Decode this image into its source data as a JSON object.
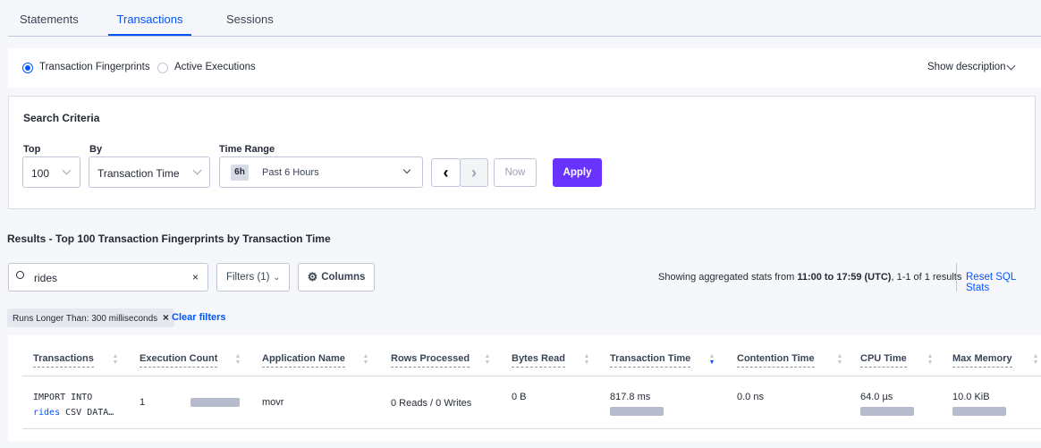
{
  "tabs": [
    {
      "label": "Statements"
    },
    {
      "label": "Transactions",
      "active": true
    },
    {
      "label": "Sessions"
    }
  ],
  "view": {
    "options": [
      {
        "label": "Transaction Fingerprints",
        "selected": true
      },
      {
        "label": "Active Executions",
        "selected": false
      }
    ],
    "show_description": "Show description"
  },
  "search_criteria": {
    "title": "Search Criteria",
    "top_label": "Top",
    "top_value": "100",
    "by_label": "By",
    "by_value": "Transaction Time",
    "time_label": "Time Range",
    "time_badge": "6h",
    "time_value": "Past 6 Hours",
    "now": "Now",
    "apply": "Apply"
  },
  "results": {
    "title": "Results - Top 100 Transaction Fingerprints by Transaction Time",
    "search_value": "rides",
    "filters": "Filters (1)",
    "columns": "Columns",
    "showing_pre": "Showing aggregated stats from ",
    "showing_range": "11:00 to 17:59 (UTC)",
    "showing_post": ", 1-1 of 1 results",
    "reset": "Reset SQL Stats",
    "chip": "Runs Longer Than: 300 milliseconds",
    "clear": "Clear filters"
  },
  "table": {
    "headers": [
      "Transactions",
      "Execution Count",
      "Application Name",
      "Rows Processed",
      "Bytes Read",
      "Transaction Time",
      "Contention Time",
      "CPU Time",
      "Max Memory"
    ],
    "sorted_column": "Transaction Time",
    "sort_direction": "descending",
    "rows": [
      {
        "txn_line1": "IMPORT INTO",
        "txn_highlight": "rides",
        "txn_rest": " CSV DATA…",
        "execution_count": "1",
        "application": "movr",
        "rows_processed": "0 Reads / 0 Writes",
        "bytes_read": "0 B",
        "transaction_time": "817.8 ms",
        "contention_time": "0.0 ns",
        "cpu_time": "64.0 µs",
        "max_memory": "10.0 KiB"
      }
    ]
  },
  "colors": {
    "accent": "#0055ff",
    "apply": "#6933ff",
    "bar": "#b6bccd"
  }
}
